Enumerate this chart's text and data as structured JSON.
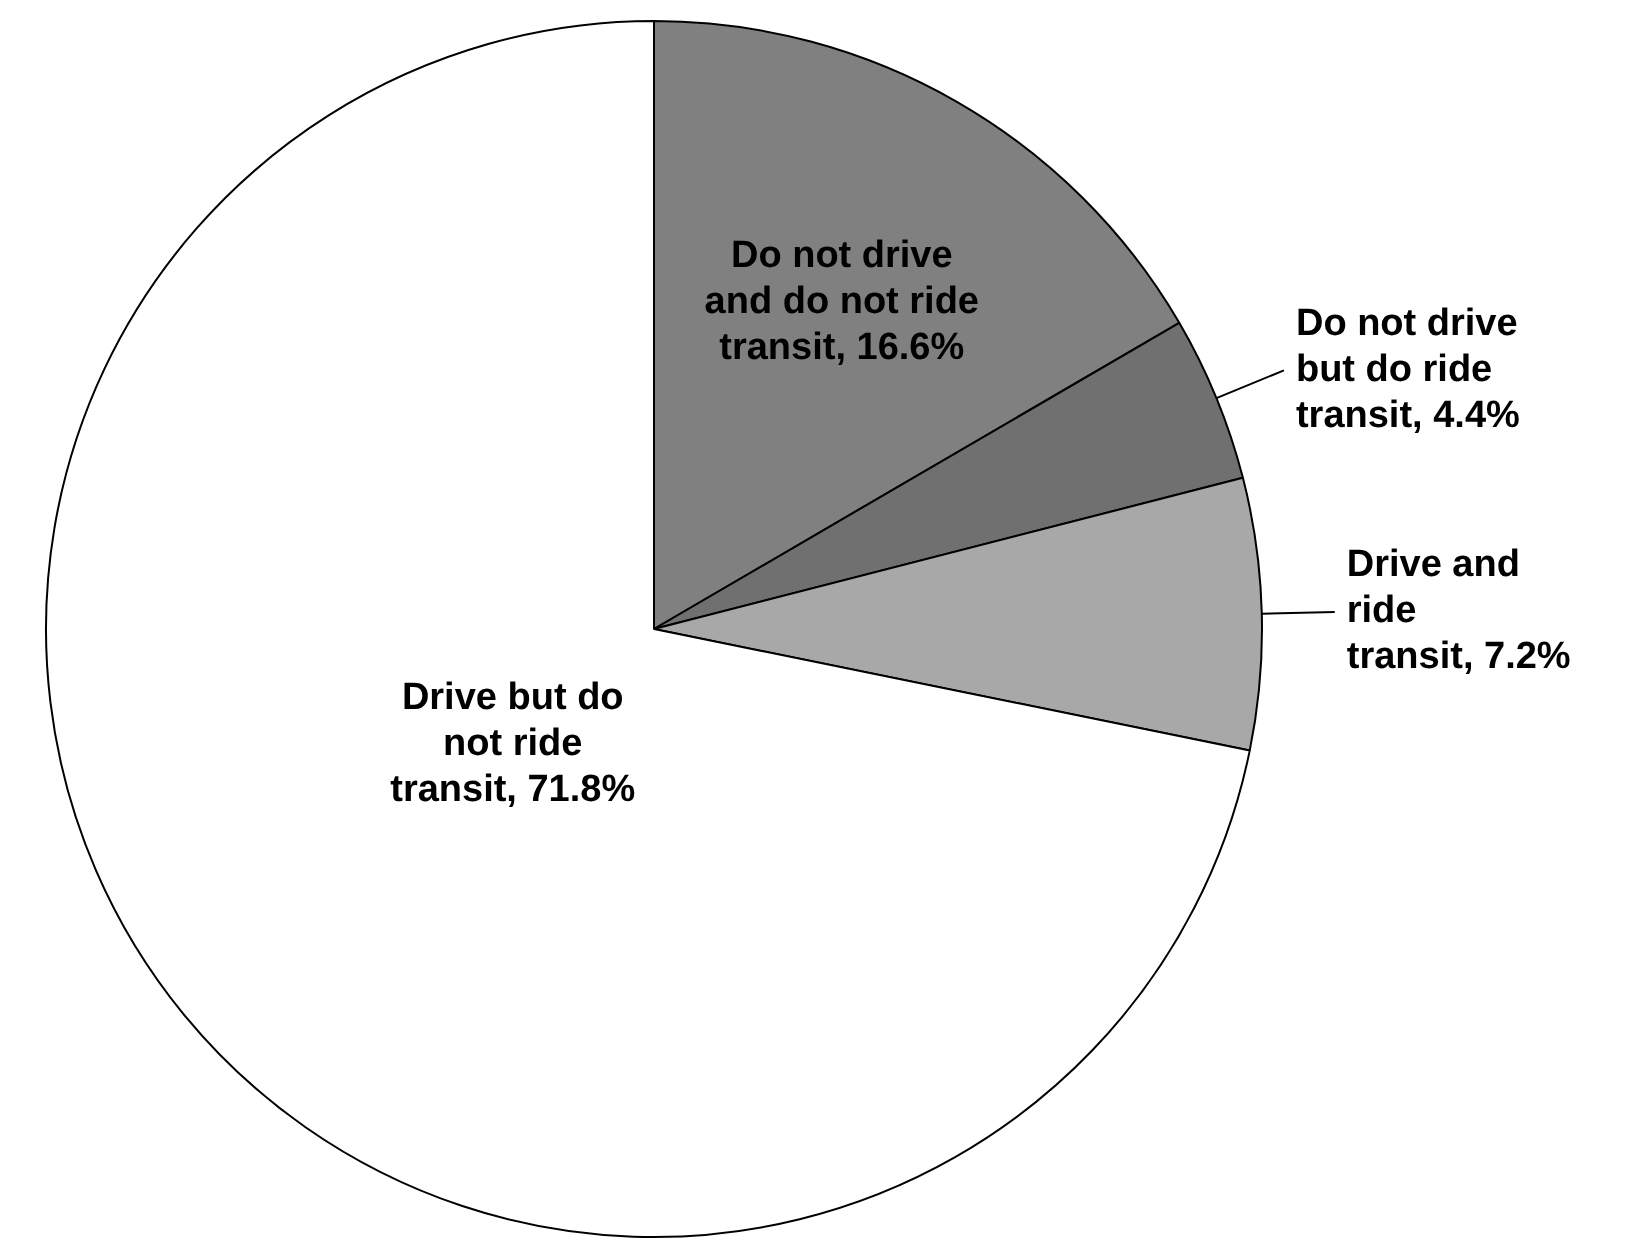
{
  "chart_data": {
    "type": "pie",
    "categories": [
      "Do not drive and do not ride transit",
      "Do not drive but do ride transit",
      "Drive and ride transit",
      "Drive but do not ride transit"
    ],
    "values": [
      16.6,
      4.4,
      7.2,
      71.8
    ],
    "value_labels": [
      "16.6%",
      "4.4%",
      "7.2%",
      "71.8%"
    ],
    "colors": [
      "#808080",
      "#707070",
      "#a8a8a8",
      "#ffffff"
    ],
    "legend": false
  }
}
